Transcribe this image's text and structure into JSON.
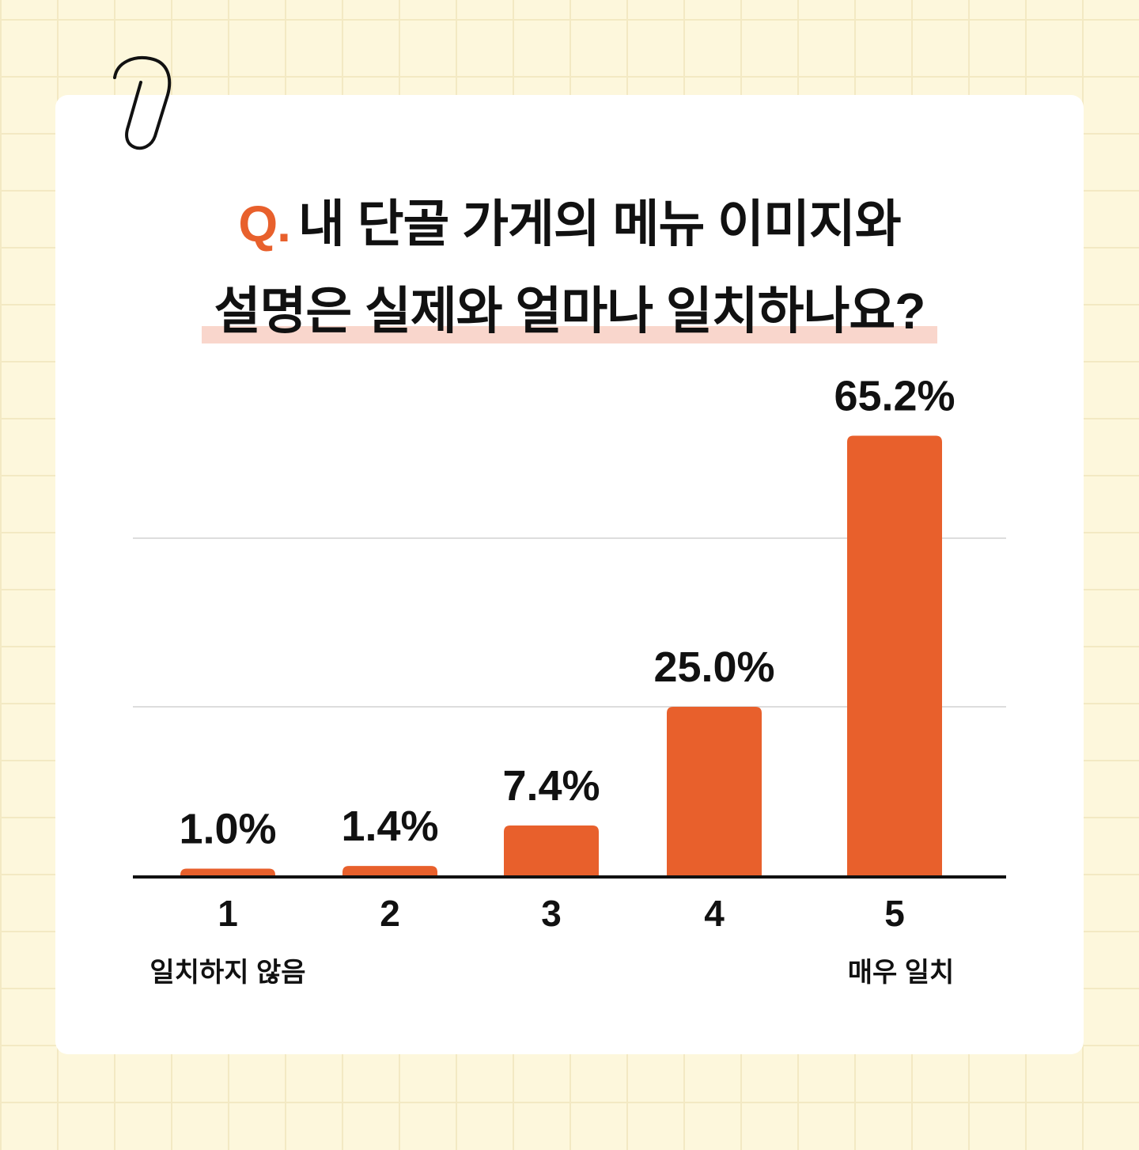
{
  "title": {
    "prefix": "Q.",
    "line1": "내 단골 가게의 메뉴 이미지와",
    "line2": "설명은 실제와 얼마나 일치하나요?"
  },
  "colors": {
    "bar": "#e8602c",
    "accent": "#e8602c",
    "highlight": "#f9d6cc",
    "background": "#fdf7dc",
    "gridline": "#dddddd"
  },
  "chart_data": {
    "type": "bar",
    "categories": [
      "1",
      "2",
      "3",
      "4",
      "5"
    ],
    "values": [
      1.0,
      1.4,
      7.4,
      25.0,
      65.2
    ],
    "value_labels": [
      "1.0%",
      "1.4%",
      "7.4%",
      "25.0%",
      "65.2%"
    ],
    "ylim": [
      0,
      75
    ],
    "grid": true,
    "title": "Q. 내 단골 가게의 메뉴 이미지와 설명은 실제와 얼마나 일치하나요?",
    "annotations": [
      {
        "category": "1",
        "text": "일치하지 않음"
      },
      {
        "category": "5",
        "text": "매우 일치"
      }
    ]
  }
}
